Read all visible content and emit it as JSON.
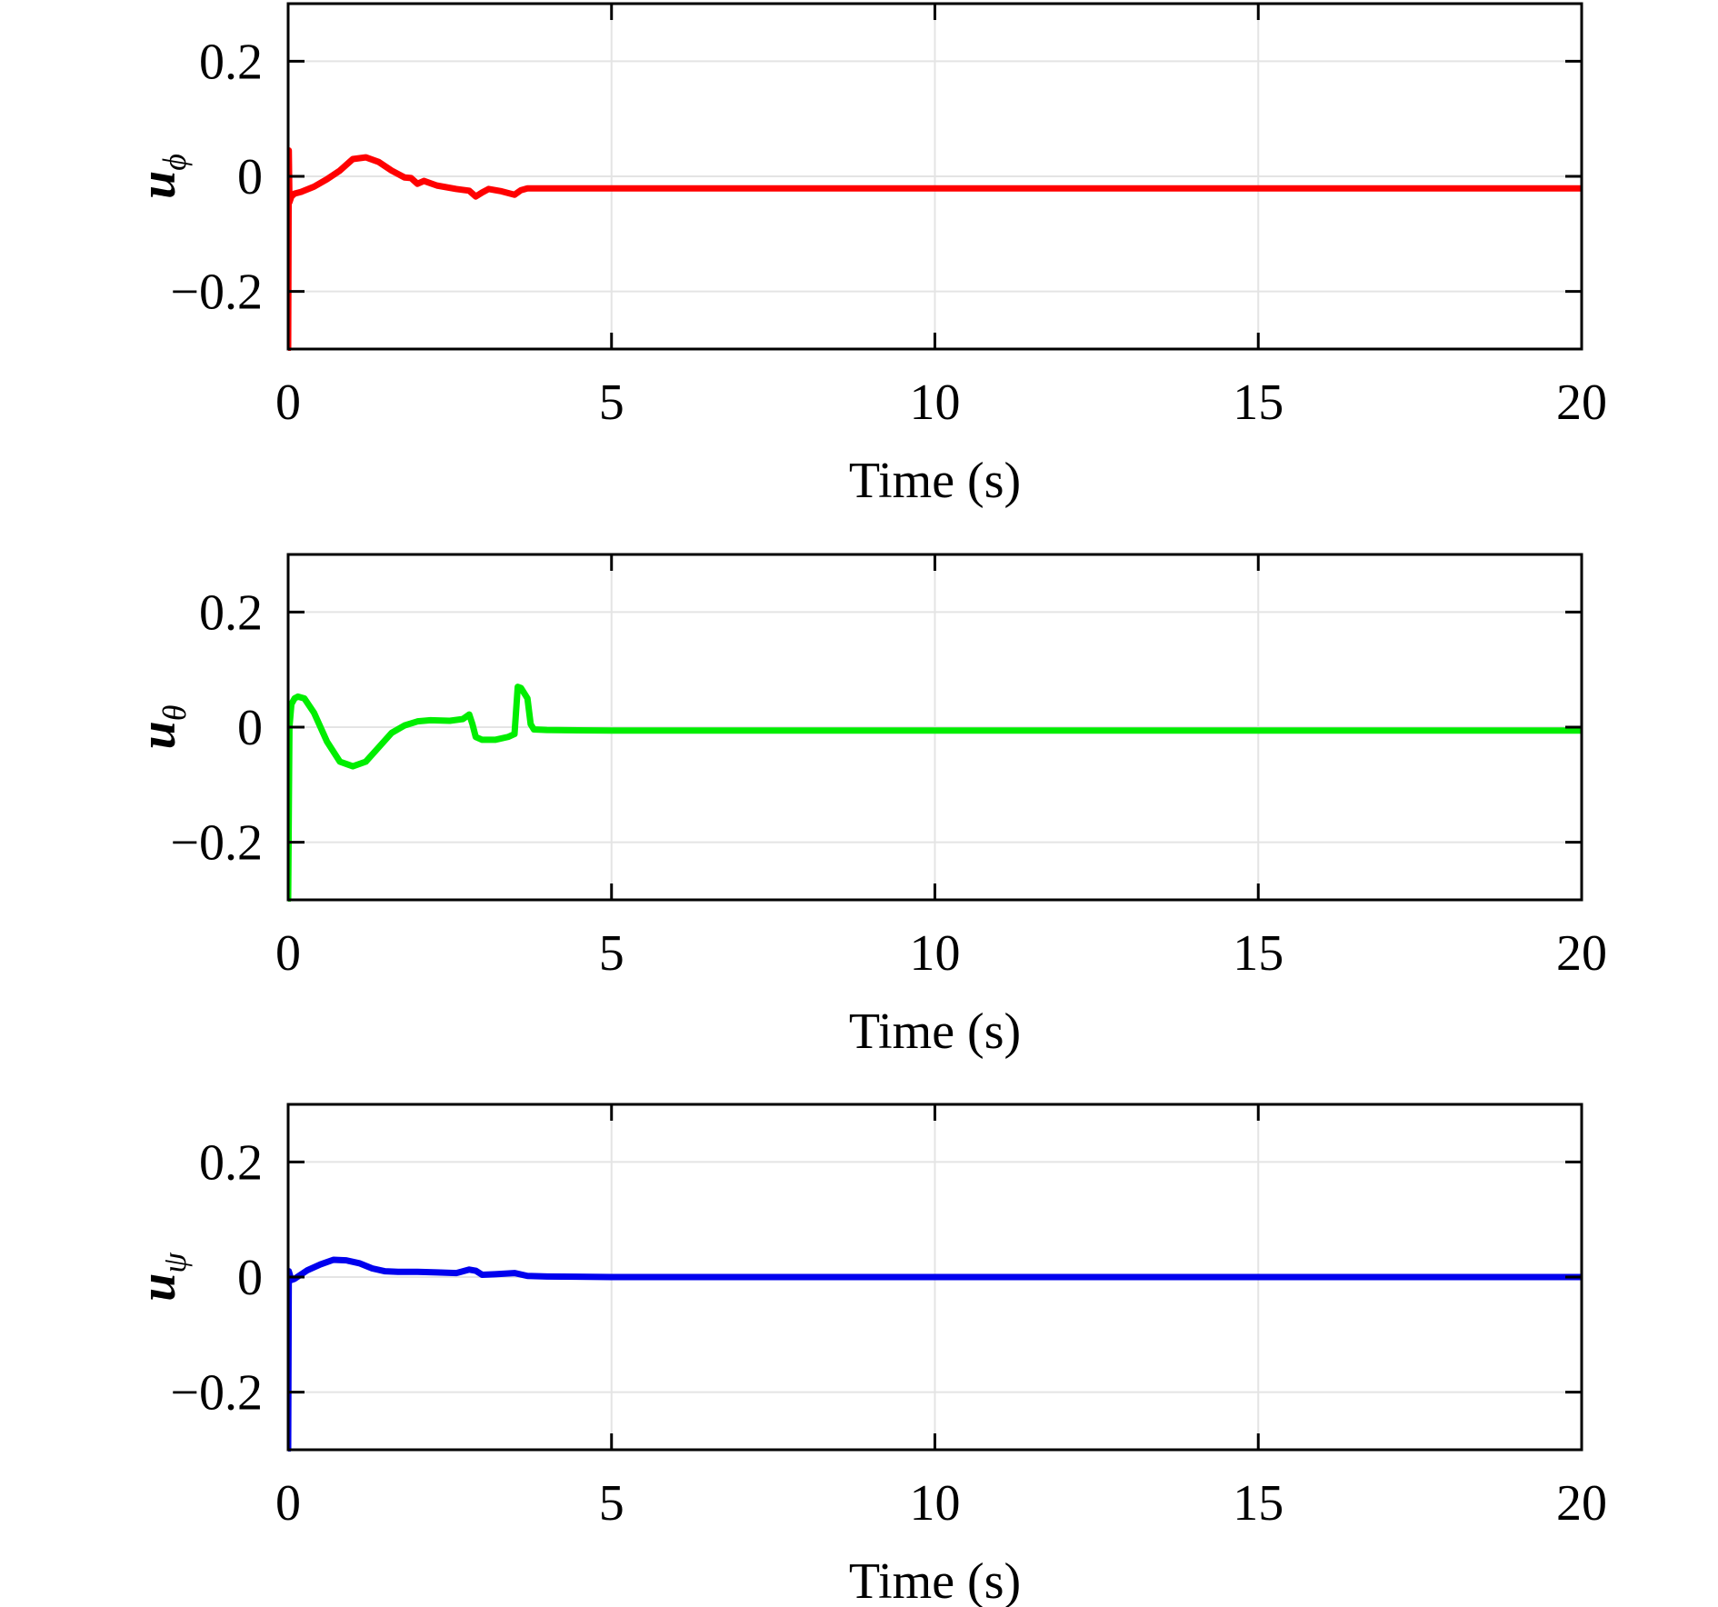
{
  "chart_data": [
    {
      "type": "line",
      "xlabel": "Time (s)",
      "ylabel": {
        "base": "u",
        "sub": "ϕ"
      },
      "xlim": [
        0,
        20
      ],
      "ylim": [
        -0.3,
        0.3
      ],
      "xticks": [
        0,
        5,
        10,
        15,
        20
      ],
      "xtick_labels": [
        "0",
        "5",
        "10",
        "15",
        "20"
      ],
      "yticks": [
        -0.2,
        0,
        0.2
      ],
      "ytick_labels": [
        "−0.2",
        "0",
        "0.2"
      ],
      "grid": true,
      "series": [
        {
          "color": "#ff0000",
          "x": [
            0,
            0.01,
            0.02,
            0.05,
            0.1,
            0.2,
            0.4,
            0.6,
            0.8,
            1.0,
            1.2,
            1.4,
            1.6,
            1.8,
            1.9,
            2.0,
            2.1,
            2.3,
            2.6,
            2.8,
            2.9,
            3.0,
            3.1,
            3.3,
            3.5,
            3.6,
            3.7,
            3.8,
            4.0,
            5,
            10,
            15,
            20
          ],
          "y": [
            -0.3,
            0.045,
            -0.045,
            -0.035,
            -0.03,
            -0.027,
            -0.018,
            -0.005,
            0.01,
            0.03,
            0.033,
            0.025,
            0.01,
            -0.002,
            -0.003,
            -0.013,
            -0.008,
            -0.016,
            -0.022,
            -0.025,
            -0.035,
            -0.028,
            -0.022,
            -0.026,
            -0.032,
            -0.024,
            -0.021,
            -0.021,
            -0.021,
            -0.021,
            -0.021,
            -0.021,
            -0.021
          ]
        }
      ]
    },
    {
      "type": "line",
      "xlabel": "Time (s)",
      "ylabel": {
        "base": "u",
        "sub": "θ"
      },
      "xlim": [
        0,
        20
      ],
      "ylim": [
        -0.3,
        0.3
      ],
      "xticks": [
        0,
        5,
        10,
        15,
        20
      ],
      "xtick_labels": [
        "0",
        "5",
        "10",
        "15",
        "20"
      ],
      "yticks": [
        -0.2,
        0,
        0.2
      ],
      "ytick_labels": [
        "−0.2",
        "0",
        "0.2"
      ],
      "grid": true,
      "series": [
        {
          "color": "#00ee00",
          "x": [
            0,
            0.02,
            0.05,
            0.1,
            0.15,
            0.25,
            0.4,
            0.6,
            0.8,
            1.0,
            1.2,
            1.4,
            1.6,
            1.8,
            2.0,
            2.2,
            2.5,
            2.7,
            2.8,
            2.85,
            2.9,
            3.0,
            3.2,
            3.4,
            3.5,
            3.55,
            3.6,
            3.7,
            3.75,
            3.8,
            4.0,
            5,
            10,
            15,
            20
          ],
          "y": [
            -0.3,
            0.0,
            0.04,
            0.05,
            0.053,
            0.05,
            0.025,
            -0.025,
            -0.06,
            -0.068,
            -0.06,
            -0.035,
            -0.01,
            0.003,
            0.01,
            0.012,
            0.011,
            0.014,
            0.022,
            0.005,
            -0.017,
            -0.022,
            -0.022,
            -0.017,
            -0.012,
            0.07,
            0.068,
            0.05,
            0.005,
            -0.004,
            -0.005,
            -0.006,
            -0.006,
            -0.006,
            -0.006
          ]
        }
      ]
    },
    {
      "type": "line",
      "xlabel": "Time (s)",
      "ylabel": {
        "base": "u",
        "sub": "ψ"
      },
      "xlim": [
        0,
        20
      ],
      "ylim": [
        -0.3,
        0.3
      ],
      "xticks": [
        0,
        5,
        10,
        15,
        20
      ],
      "xtick_labels": [
        "0",
        "5",
        "10",
        "15",
        "20"
      ],
      "yticks": [
        -0.2,
        0,
        0.2
      ],
      "ytick_labels": [
        "−0.2",
        "0",
        "0.2"
      ],
      "grid": true,
      "series": [
        {
          "color": "#0000ee",
          "x": [
            0,
            0.01,
            0.05,
            0.1,
            0.3,
            0.5,
            0.7,
            0.9,
            1.1,
            1.3,
            1.5,
            1.7,
            2.0,
            2.3,
            2.6,
            2.8,
            2.9,
            3.0,
            3.2,
            3.5,
            3.7,
            4.0,
            5,
            10,
            15,
            20
          ],
          "y": [
            -0.3,
            0.01,
            -0.005,
            -0.003,
            0.012,
            0.022,
            0.03,
            0.029,
            0.024,
            0.015,
            0.01,
            0.009,
            0.009,
            0.008,
            0.007,
            0.013,
            0.011,
            0.004,
            0.005,
            0.007,
            0.002,
            0.001,
            0.0,
            0.0,
            0.0,
            0.0
          ]
        }
      ]
    }
  ]
}
